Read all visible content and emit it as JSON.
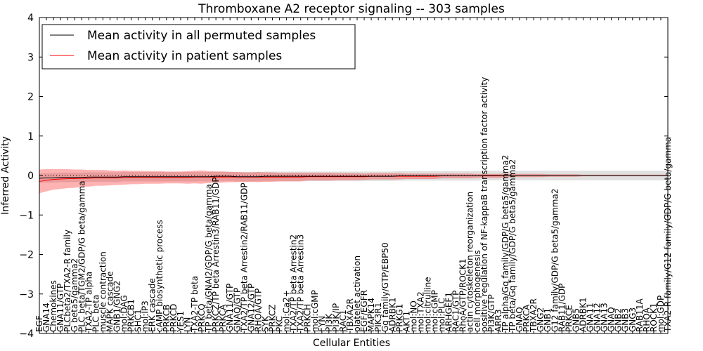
{
  "chart_data": {
    "type": "line",
    "title": "Thromboxane A2 receptor signaling -- 303 samples",
    "xlabel": "Cellular Entities",
    "ylabel": "Inferred Activity",
    "ylim": [
      -4,
      4
    ],
    "yticks": [
      -4,
      -3,
      -2,
      -1,
      0,
      1,
      2,
      3,
      4
    ],
    "yticklabels": [
      "−4",
      "−3",
      "−2",
      "−1",
      "0",
      "1",
      "2",
      "3",
      "4"
    ],
    "legend": {
      "position": "top-left",
      "entries": [
        {
          "label": "Mean activity in all permuted samples",
          "color": "#000000"
        },
        {
          "label": "Mean activity in patient samples",
          "color": "#ff0000"
        }
      ]
    },
    "categories": [
      "EGF",
      "GNA14",
      "Chemokines",
      "GNA11/GTP",
      "PLCbeta2/TXA2-R family",
      "G beta5/gamma2",
      "PLC beta/TGM2/GDP/G beta/gamma",
      "TXA2-TP alpha",
      "PLC beta",
      "muscle contraction",
      "MAPK cascade",
      "GNB1/GNG2",
      "mol:DAG",
      "PRKCB1",
      "SHC1",
      "mol:IP3",
      "ERK cascade",
      "cAMP biosynthetic process",
      "PRKCB",
      "PRKCD",
      "YES1",
      "LYN",
      "TXA2-TP beta",
      "PRKCQ",
      "TP beta/GNAI2/GDP/G beta/gamma",
      "PRKCZ/TP beta Arrestin3/RAB11/GDP",
      "PRKCA",
      "GNA11/GTP",
      "GNAQ/GTP",
      "TXA2/TP beta Arrestin2/RAB11/GDP",
      "GNA12/GTP",
      "RHOA/GTP",
      "SYK",
      "PRKCZ",
      "PKC",
      "mol:Ca2+",
      "TXA2/TP beta Arrestin2",
      "TXA2/TP beta Arrestin3",
      "PRKCH",
      "mol:cGMP",
      "FYN",
      "PI3K",
      "PI3K/IP",
      "RAC1",
      "TBXA2R",
      "platelet activation",
      "EGF/EGFR",
      "MAPK14",
      "PIK3R1",
      "Gq family/GTP/EBP50",
      "ADRBK1",
      "PRKG1",
      "AKT1",
      "mol:NO",
      "mol:TXA2",
      "mol:citrulline",
      "mol:cGMP",
      "mol:PLC",
      "ARHGEF1",
      "RAC1/GTP",
      "RhoA/GTP/ROCK1",
      "actin cytoskeleton reorganization",
      "cell morphogenesis",
      "positive regulation of NF-kappaB transcription factor activity",
      "PI3K/GTP",
      "ARR3",
      "TP alpha/Gq family/GDP/G beta5/gamma2",
      "TP beta/Gq family/GDP/G beta5/gamma2",
      "GNAQ",
      "PRKCA",
      "TBXA2R",
      "GNG2",
      "GNB1",
      "G12 family/GDP/G beta5/gamma2",
      "RAB11/GDP",
      "PRKCE",
      "GNB5",
      "ADRBK1",
      "GNA11",
      "GNA12",
      "GNA13",
      "GNAQ",
      "GNB2",
      "GNB3",
      "GNG3",
      "RAB11A",
      "RHOA",
      "ROCK1",
      "mol:GDP",
      "TXA2-R family/G12 family/GDP/G beta/gamma"
    ],
    "series": [
      {
        "name": "Mean activity in all permuted samples",
        "color": "#000000",
        "values": [
          -0.07,
          -0.06,
          -0.06,
          -0.05,
          -0.05,
          -0.05,
          -0.05,
          -0.04,
          -0.04,
          -0.04,
          -0.04,
          -0.04,
          -0.03,
          -0.03,
          -0.03,
          -0.03,
          -0.03,
          -0.03,
          -0.03,
          -0.03,
          -0.03,
          -0.03,
          -0.03,
          -0.03,
          -0.03,
          -0.02,
          -0.02,
          -0.02,
          -0.03,
          -0.03,
          -0.03,
          -0.03,
          -0.02,
          -0.02,
          -0.02,
          -0.02,
          -0.02,
          -0.02,
          -0.02,
          -0.02,
          -0.02,
          -0.02,
          -0.02,
          -0.02,
          -0.02,
          -0.02,
          -0.02,
          -0.02,
          -0.02,
          -0.02,
          -0.02,
          -0.01,
          -0.01,
          -0.01,
          -0.01,
          -0.01,
          -0.01,
          -0.01,
          -0.01,
          -0.01,
          -0.01,
          -0.01,
          -0.01,
          0.0,
          0.0,
          0.0,
          0.0,
          0.0,
          0.0,
          0.0,
          0.0,
          0.0,
          0.0,
          0.0,
          0.0,
          0.0,
          0.0,
          0.0,
          0.0,
          0.0,
          0.0,
          0.0,
          0.0,
          0.0,
          0.0,
          0.0,
          0.0,
          0.0,
          0.0,
          0.0
        ],
        "band": 0.12
      },
      {
        "name": "Mean activity in patient samples",
        "color": "#ff0000",
        "values": [
          -0.15,
          -0.12,
          -0.1,
          -0.09,
          -0.08,
          -0.08,
          -0.07,
          -0.07,
          -0.06,
          -0.06,
          -0.06,
          -0.06,
          -0.05,
          -0.05,
          -0.05,
          -0.05,
          -0.05,
          -0.05,
          -0.05,
          -0.05,
          -0.05,
          -0.05,
          -0.04,
          -0.04,
          -0.04,
          -0.04,
          -0.04,
          -0.04,
          -0.04,
          -0.04,
          -0.04,
          -0.04,
          -0.04,
          -0.04,
          -0.04,
          -0.04,
          -0.04,
          -0.04,
          -0.03,
          -0.03,
          -0.03,
          -0.03,
          -0.03,
          -0.03,
          -0.03,
          -0.03,
          -0.03,
          -0.02,
          -0.02,
          -0.02,
          -0.02,
          -0.02,
          -0.02,
          -0.02,
          -0.02,
          -0.02,
          -0.02,
          -0.01,
          -0.01,
          -0.01,
          -0.01,
          -0.01,
          -0.01,
          -0.01,
          -0.01,
          -0.01,
          0.0,
          0.0,
          0.0,
          0.0,
          0.0,
          0.0,
          0.0,
          0.0,
          0.0,
          0.0,
          0.0,
          0.0,
          0.0,
          0.0,
          0.0,
          0.0,
          0.0,
          0.0,
          0.0,
          0.0,
          0.0,
          0.0,
          0.0,
          0.0
        ],
        "band": [
          0.3,
          0.28,
          0.26,
          0.25,
          0.24,
          0.23,
          0.22,
          0.21,
          0.2,
          0.2,
          0.19,
          0.18,
          0.18,
          0.17,
          0.17,
          0.16,
          0.16,
          0.16,
          0.15,
          0.15,
          0.15,
          0.16,
          0.16,
          0.17,
          0.15,
          0.14,
          0.14,
          0.13,
          0.13,
          0.12,
          0.12,
          0.13,
          0.12,
          0.12,
          0.11,
          0.11,
          0.11,
          0.11,
          0.1,
          0.1,
          0.1,
          0.1,
          0.09,
          0.09,
          0.09,
          0.09,
          0.08,
          0.08,
          0.08,
          0.08,
          0.08,
          0.08,
          0.07,
          0.07,
          0.07,
          0.07,
          0.07,
          0.06,
          0.06,
          0.06,
          0.06,
          0.06,
          0.05,
          0.05,
          0.05,
          0.05,
          0.05,
          0.04,
          0.04,
          0.04,
          0.04,
          0.04,
          0.03,
          0.03,
          0.03,
          0.03,
          0.03,
          0.02,
          0.02,
          0.02,
          0.02,
          0.02,
          0.02,
          0.02,
          0.02,
          0.02,
          0.02,
          0.02,
          0.02,
          0.02,
          0.05
        ]
      }
    ],
    "reference_line": {
      "y": 0,
      "style": "dotted"
    }
  }
}
